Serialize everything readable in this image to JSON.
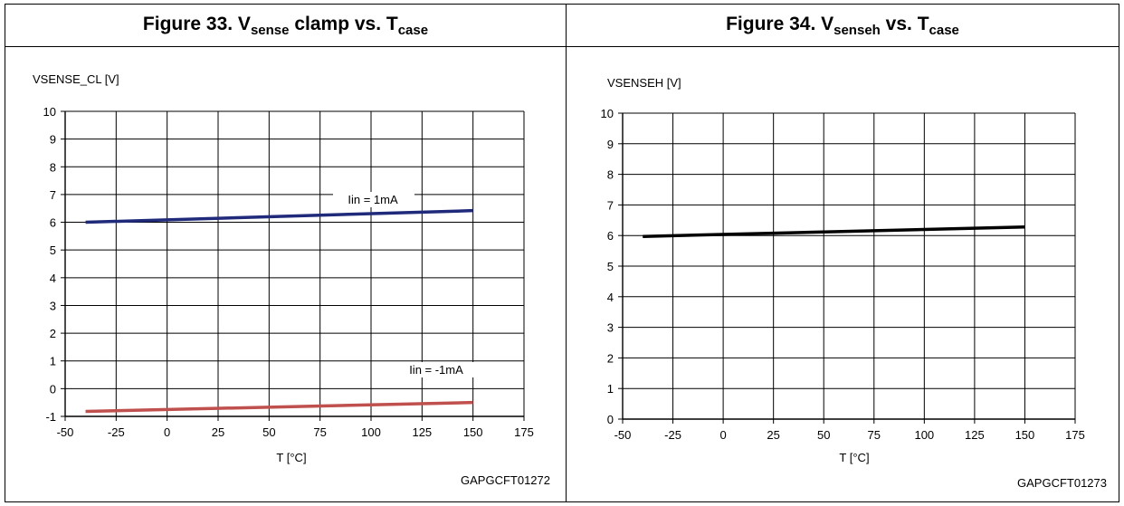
{
  "charts": [
    {
      "figure_label": "Figure 33. V",
      "figure_sub1": "sense",
      "figure_mid": " clamp vs. T",
      "figure_sub2": "case",
      "ylabel": "VSENSE_CL [V]",
      "xlabel": "T [°C]",
      "code": "GAPGCFT01272"
    },
    {
      "figure_label": "Figure 34. V",
      "figure_sub1": "senseh",
      "figure_mid": " vs. T",
      "figure_sub2": "case",
      "ylabel": "VSENSEH [V]",
      "xlabel": "T [°C]",
      "code": "GAPGCFT01273"
    }
  ],
  "chart_data": [
    {
      "type": "line",
      "title": "Figure 33. Vsense clamp vs. Tcase",
      "xlabel": "T [°C]",
      "ylabel": "VSENSE_CL [V]",
      "xlim": [
        -50,
        175
      ],
      "ylim": [
        -1,
        10
      ],
      "xticks": [
        -50,
        -25,
        0,
        25,
        50,
        75,
        100,
        125,
        150,
        175
      ],
      "yticks": [
        -1,
        0,
        1,
        2,
        3,
        4,
        5,
        6,
        7,
        8,
        9,
        10
      ],
      "grid": true,
      "series": [
        {
          "name": "Iin = 1mA",
          "color": "#1f2a7a",
          "x": [
            -40,
            150
          ],
          "y": [
            6.0,
            6.42
          ]
        },
        {
          "name": "Iin = -1mA",
          "color": "#c0504d",
          "x": [
            -40,
            150
          ],
          "y": [
            -0.82,
            -0.5
          ]
        }
      ],
      "annotations": [
        "Iin = 1mA",
        "Iin = -1mA"
      ]
    },
    {
      "type": "line",
      "title": "Figure 34. Vsenseh vs. Tcase",
      "xlabel": "T [°C]",
      "ylabel": "VSENSEH [V]",
      "xlim": [
        -50,
        175
      ],
      "ylim": [
        0,
        10
      ],
      "xticks": [
        -50,
        -25,
        0,
        25,
        50,
        75,
        100,
        125,
        150,
        175
      ],
      "yticks": [
        0,
        1,
        2,
        3,
        4,
        5,
        6,
        7,
        8,
        9,
        10
      ],
      "grid": true,
      "series": [
        {
          "color": "#000000",
          "x": [
            -40,
            150
          ],
          "y": [
            5.97,
            6.28
          ]
        }
      ]
    }
  ]
}
